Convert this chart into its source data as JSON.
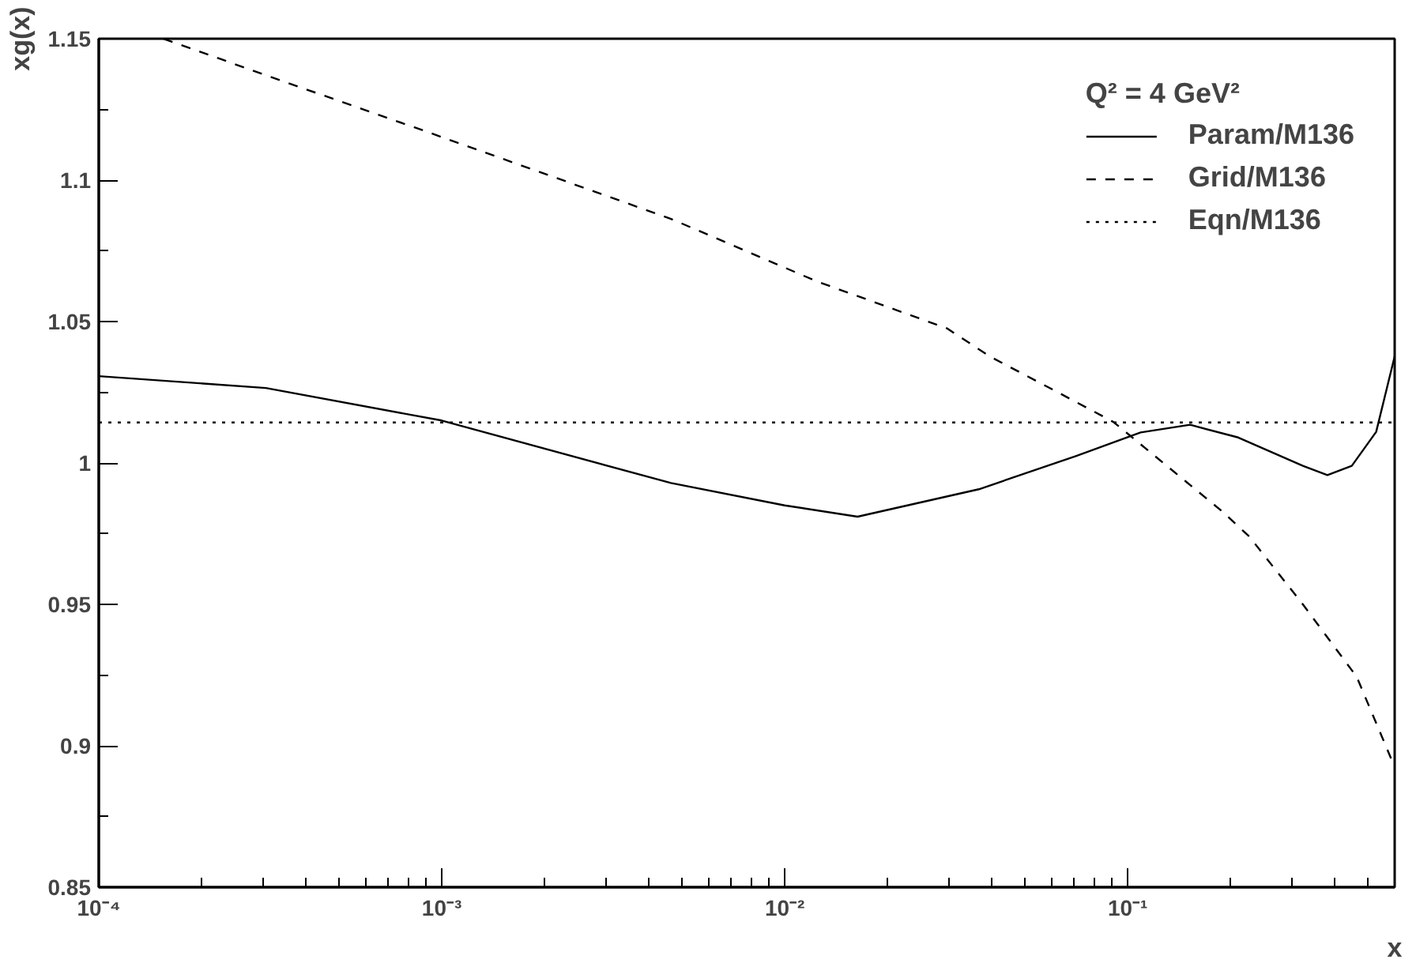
{
  "chart_data": {
    "type": "line",
    "xlabel": "x",
    "ylabel": "xg(x)",
    "legend_title": "Q² = 4 GeV²",
    "log": "x",
    "legend": "top right",
    "grid": false,
    "xlim": [
      0.0001,
      0.6
    ],
    "ylim": [
      0.85,
      1.15
    ],
    "xticks": [
      {
        "value": 0.0001,
        "label": "10⁻⁴"
      },
      {
        "value": 0.001,
        "label": "10⁻³"
      },
      {
        "value": 0.01,
        "label": "10⁻²"
      },
      {
        "value": 0.1,
        "label": "10⁻¹"
      }
    ],
    "yticks": [
      0.85,
      0.9,
      0.95,
      1,
      1.05,
      1.1,
      1.15
    ],
    "series": [
      {
        "name": "Param/M136",
        "color": "#000000",
        "line_style": "solid",
        "x": [
          0.0001,
          0.000307,
          0.001,
          0.00466,
          0.01,
          0.0163,
          0.0368,
          0.0708,
          0.109,
          0.152,
          0.21,
          0.324,
          0.382,
          0.45,
          0.53,
          0.6
        ],
        "values": [
          1.0307,
          1.0265,
          1.015,
          0.9929,
          0.985,
          0.981,
          0.9907,
          1.0025,
          1.0108,
          1.0135,
          1.009,
          0.999,
          0.9957,
          0.999,
          1.011,
          1.0377
        ]
      },
      {
        "name": "Grid/M136",
        "color": "#000000",
        "line_style": "dashed",
        "x": [
          0.0001545,
          0.000307,
          0.00091,
          0.00466,
          0.0124,
          0.0297,
          0.0397,
          0.0614,
          0.0908,
          0.188,
          0.226,
          0.324,
          0.465,
          0.59
        ],
        "values": [
          1.15,
          1.1371,
          1.117,
          1.0863,
          1.0642,
          1.0476,
          1.0376,
          1.0255,
          1.0145,
          0.983,
          0.974,
          0.95,
          0.9244,
          0.8946
        ]
      },
      {
        "name": "Eqn/M136",
        "color": "#000000",
        "line_style": "dotted",
        "x": [
          0.0001,
          0.6
        ],
        "values": [
          1.0143,
          1.0143
        ]
      }
    ]
  }
}
